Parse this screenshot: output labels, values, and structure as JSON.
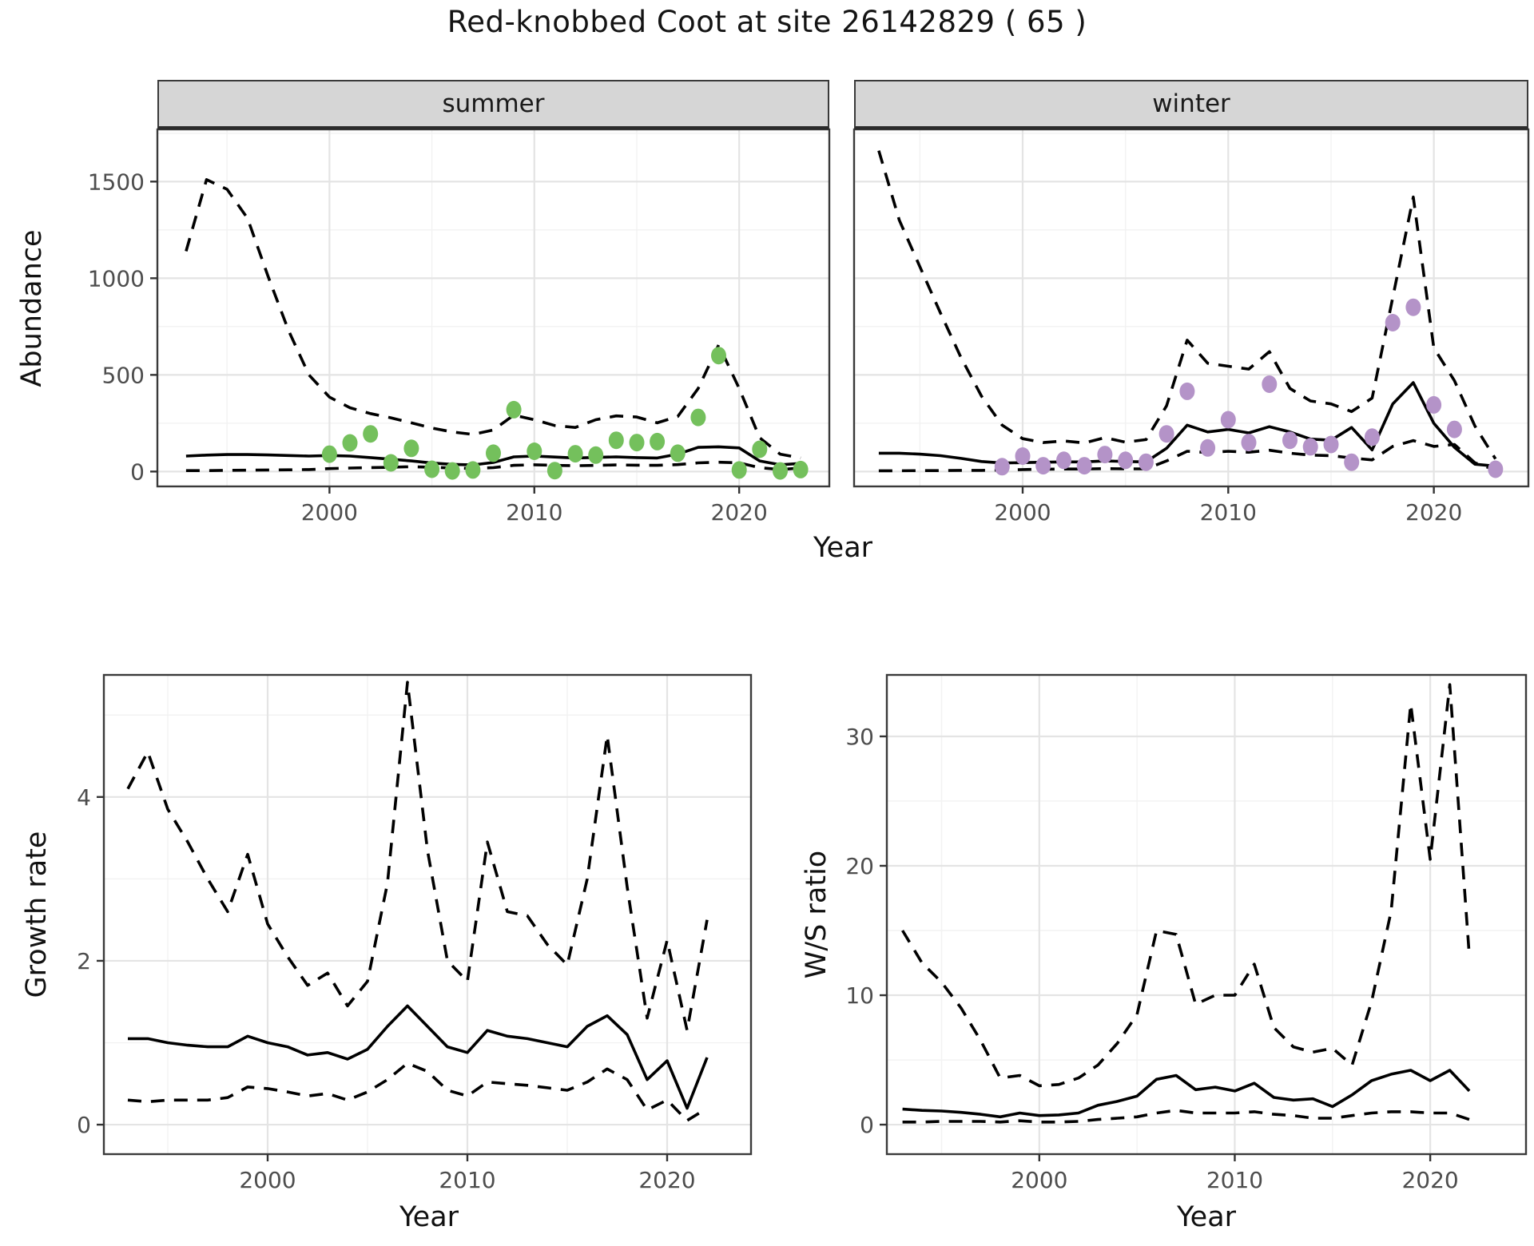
{
  "title": "Red-knobbed Coot at site 26142829 ( 65 )",
  "facets": {
    "summer": "summer",
    "winter": "winter"
  },
  "axis_labels": {
    "top_y": "Abundance",
    "top_x": "Year",
    "growth_y": "Growth rate",
    "growth_x": "Year",
    "ws_y": "W/S ratio",
    "ws_x": "Year"
  },
  "colors": {
    "summer_points": "#74c05c",
    "winter_points": "#b493c8",
    "line": "#000000",
    "strip_bg": "#d6d6d6",
    "grid_major": "#e4e4e4",
    "grid_minor": "#f2f2f2",
    "panel_border": "#3a3a3a",
    "tick_text": "#4d4d4d"
  },
  "chart_data": [
    {
      "id": "abundance-summer",
      "type": "line",
      "facet_label": "summer",
      "xlabel": "Year",
      "ylabel": "Abundance",
      "x_domain": [
        1991.6,
        2024.4
      ],
      "y_domain": [
        -77,
        1770
      ],
      "x_ticks": [
        2000,
        2010,
        2020
      ],
      "x_minor": [
        1995,
        2005,
        2015
      ],
      "y_ticks": [
        0,
        500,
        1000,
        1500
      ],
      "y_minor": [
        250,
        750,
        1250,
        1750
      ],
      "y_tick_labels": true,
      "x_tick_labels": true,
      "years": [
        1993,
        1994,
        1995,
        1996,
        1997,
        1998,
        1999,
        2000,
        2001,
        2002,
        2003,
        2004,
        2005,
        2006,
        2007,
        2008,
        2009,
        2010,
        2011,
        2012,
        2013,
        2014,
        2015,
        2016,
        2017,
        2018,
        2019,
        2020,
        2021,
        2022,
        2023
      ],
      "series": [
        {
          "name": "upper_ci",
          "style": "dashed",
          "values": [
            1140,
            1510,
            1460,
            1310,
            1010,
            730,
            500,
            385,
            330,
            300,
            278,
            252,
            225,
            205,
            192,
            215,
            292,
            268,
            238,
            228,
            268,
            288,
            282,
            252,
            285,
            430,
            655,
            430,
            175,
            90,
            70
          ]
        },
        {
          "name": "lower_ci",
          "style": "dashed",
          "values": [
            5,
            5,
            6,
            7,
            8,
            9,
            10,
            15,
            18,
            20,
            22,
            25,
            22,
            18,
            16,
            20,
            32,
            35,
            32,
            30,
            32,
            34,
            33,
            32,
            36,
            45,
            48,
            45,
            20,
            10,
            18
          ]
        },
        {
          "name": "mean",
          "style": "solid",
          "values": [
            80,
            85,
            88,
            88,
            86,
            83,
            80,
            83,
            80,
            72,
            64,
            55,
            44,
            37,
            34,
            47,
            76,
            80,
            75,
            70,
            73,
            76,
            72,
            70,
            90,
            125,
            128,
            122,
            55,
            35,
            42
          ]
        }
      ],
      "observations": {
        "color_key": "summer_points",
        "years": [
          2000,
          2001,
          2002,
          2003,
          2004,
          2005,
          2006,
          2007,
          2008,
          2009,
          2010,
          2011,
          2012,
          2013,
          2014,
          2015,
          2016,
          2017,
          2018,
          2019,
          2020,
          2021,
          2022,
          2023
        ],
        "values": [
          90,
          148,
          195,
          45,
          120,
          12,
          3,
          8,
          95,
          320,
          105,
          5,
          92,
          85,
          162,
          150,
          155,
          95,
          280,
          600,
          8,
          115,
          3,
          10
        ]
      }
    },
    {
      "id": "abundance-winter",
      "type": "line",
      "facet_label": "winter",
      "xlabel": "Year",
      "ylabel": "Abundance",
      "x_domain": [
        1991.8,
        2024.6
      ],
      "y_domain": [
        -77,
        1770
      ],
      "x_ticks": [
        2000,
        2010,
        2020
      ],
      "x_minor": [
        1995,
        2005,
        2015
      ],
      "y_ticks": [
        0,
        500,
        1000,
        1500
      ],
      "y_minor": [
        250,
        750,
        1250,
        1750
      ],
      "y_tick_labels": false,
      "x_tick_labels": true,
      "years": [
        1993,
        1994,
        1995,
        1996,
        1997,
        1998,
        1999,
        2000,
        2001,
        2002,
        2003,
        2004,
        2005,
        2006,
        2007,
        2008,
        2009,
        2010,
        2011,
        2012,
        2013,
        2014,
        2015,
        2016,
        2017,
        2018,
        2019,
        2020,
        2021,
        2022,
        2023
      ],
      "series": [
        {
          "name": "upper_ci",
          "style": "dashed",
          "values": [
            1660,
            1300,
            1060,
            820,
            590,
            390,
            240,
            170,
            150,
            158,
            148,
            175,
            152,
            165,
            340,
            680,
            560,
            545,
            530,
            620,
            430,
            365,
            350,
            310,
            380,
            900,
            1420,
            640,
            470,
            235,
            65
          ]
        },
        {
          "name": "lower_ci",
          "style": "dashed",
          "values": [
            4,
            4,
            5,
            5,
            6,
            6,
            8,
            10,
            12,
            13,
            13,
            15,
            14,
            14,
            55,
            105,
            98,
            105,
            100,
            110,
            95,
            85,
            82,
            70,
            60,
            130,
            160,
            130,
            140,
            45,
            8
          ]
        },
        {
          "name": "mean",
          "style": "solid",
          "values": [
            95,
            95,
            90,
            82,
            68,
            52,
            44,
            46,
            48,
            50,
            50,
            55,
            52,
            50,
            120,
            240,
            205,
            218,
            200,
            232,
            205,
            168,
            162,
            228,
            112,
            350,
            460,
            250,
            125,
            38,
            28
          ]
        }
      ],
      "observations": {
        "color_key": "winter_points",
        "years": [
          1999,
          2000,
          2001,
          2002,
          2003,
          2004,
          2005,
          2006,
          2007,
          2008,
          2009,
          2010,
          2011,
          2012,
          2013,
          2014,
          2015,
          2016,
          2017,
          2018,
          2019,
          2020,
          2021,
          2023
        ],
        "values": [
          25,
          80,
          30,
          58,
          30,
          88,
          58,
          48,
          195,
          415,
          122,
          268,
          150,
          452,
          162,
          128,
          140,
          48,
          178,
          770,
          850,
          345,
          218,
          12
        ]
      }
    },
    {
      "id": "growth-rate",
      "type": "line",
      "xlabel": "Year",
      "ylabel": "Growth rate",
      "x_domain": [
        1991.8,
        2024.2
      ],
      "y_domain": [
        -0.36,
        5.49
      ],
      "x_ticks": [
        2000,
        2010,
        2020
      ],
      "x_minor": [
        1995,
        2005,
        2015
      ],
      "y_ticks": [
        0,
        2,
        4
      ],
      "y_minor": [
        1,
        3,
        5
      ],
      "y_tick_labels": true,
      "x_tick_labels": true,
      "years": [
        1993,
        1994,
        1995,
        1996,
        1997,
        1998,
        1999,
        2000,
        2001,
        2002,
        2003,
        2004,
        2005,
        2006,
        2007,
        2008,
        2009,
        2010,
        2011,
        2012,
        2013,
        2014,
        2015,
        2016,
        2017,
        2018,
        2019,
        2020,
        2021,
        2022
      ],
      "series": [
        {
          "name": "upper_ci",
          "style": "dashed",
          "values": [
            4.1,
            4.55,
            3.85,
            3.45,
            3.0,
            2.6,
            3.3,
            2.45,
            2.05,
            1.7,
            1.85,
            1.45,
            1.75,
            2.95,
            5.4,
            3.35,
            2.0,
            1.75,
            3.45,
            2.6,
            2.55,
            2.2,
            1.95,
            3.0,
            4.75,
            2.9,
            1.3,
            2.25,
            1.15,
            2.5
          ]
        },
        {
          "name": "lower_ci",
          "style": "dashed",
          "values": [
            0.3,
            0.28,
            0.3,
            0.3,
            0.3,
            0.33,
            0.46,
            0.44,
            0.4,
            0.35,
            0.38,
            0.3,
            0.4,
            0.55,
            0.75,
            0.65,
            0.42,
            0.35,
            0.52,
            0.5,
            0.48,
            0.45,
            0.42,
            0.52,
            0.68,
            0.55,
            0.18,
            0.3,
            0.05,
            0.2
          ]
        },
        {
          "name": "mean",
          "style": "solid",
          "values": [
            1.05,
            1.05,
            1.0,
            0.97,
            0.95,
            0.95,
            1.08,
            1.0,
            0.95,
            0.85,
            0.88,
            0.8,
            0.92,
            1.2,
            1.45,
            1.2,
            0.95,
            0.88,
            1.15,
            1.08,
            1.05,
            1.0,
            0.95,
            1.2,
            1.33,
            1.1,
            0.55,
            0.78,
            0.2,
            0.82
          ]
        }
      ]
    },
    {
      "id": "ws-ratio",
      "type": "line",
      "xlabel": "Year",
      "ylabel": "W/S ratio",
      "x_domain": [
        1992.2,
        2024.9
      ],
      "y_domain": [
        -2.28,
        34.75
      ],
      "x_ticks": [
        2000,
        2010,
        2020
      ],
      "x_minor": [
        1995,
        2005,
        2015
      ],
      "y_ticks": [
        0,
        10,
        20,
        30
      ],
      "y_minor": [
        5,
        15,
        25
      ],
      "y_tick_labels": true,
      "x_tick_labels": true,
      "years": [
        1993,
        1994,
        1995,
        1996,
        1997,
        1998,
        1999,
        2000,
        2001,
        2002,
        2003,
        2004,
        2005,
        2006,
        2007,
        2008,
        2009,
        2010,
        2011,
        2012,
        2013,
        2014,
        2015,
        2016,
        2017,
        2018,
        2019,
        2020,
        2021,
        2022
      ],
      "series": [
        {
          "name": "upper_ci",
          "style": "dashed",
          "values": [
            15.0,
            12.5,
            11.0,
            9.0,
            6.5,
            3.6,
            3.8,
            3.0,
            3.1,
            3.6,
            4.6,
            6.3,
            8.5,
            15.0,
            14.7,
            9.3,
            10.0,
            10.0,
            12.4,
            7.5,
            6.0,
            5.6,
            5.9,
            4.6,
            9.5,
            16.5,
            32.5,
            20.5,
            34.0,
            13.0
          ]
        },
        {
          "name": "lower_ci",
          "style": "dashed",
          "values": [
            0.2,
            0.2,
            0.25,
            0.25,
            0.25,
            0.2,
            0.3,
            0.2,
            0.2,
            0.25,
            0.4,
            0.5,
            0.6,
            0.9,
            1.1,
            0.9,
            0.9,
            0.9,
            1.0,
            0.8,
            0.7,
            0.5,
            0.5,
            0.7,
            0.9,
            1.0,
            1.0,
            0.9,
            0.9,
            0.4
          ]
        },
        {
          "name": "mean",
          "style": "solid",
          "values": [
            1.2,
            1.1,
            1.05,
            0.95,
            0.8,
            0.6,
            0.9,
            0.7,
            0.75,
            0.9,
            1.5,
            1.8,
            2.2,
            3.5,
            3.8,
            2.7,
            2.9,
            2.6,
            3.2,
            2.1,
            1.9,
            2.0,
            1.4,
            2.3,
            3.4,
            3.9,
            4.2,
            3.4,
            4.2,
            2.6
          ]
        }
      ]
    }
  ]
}
